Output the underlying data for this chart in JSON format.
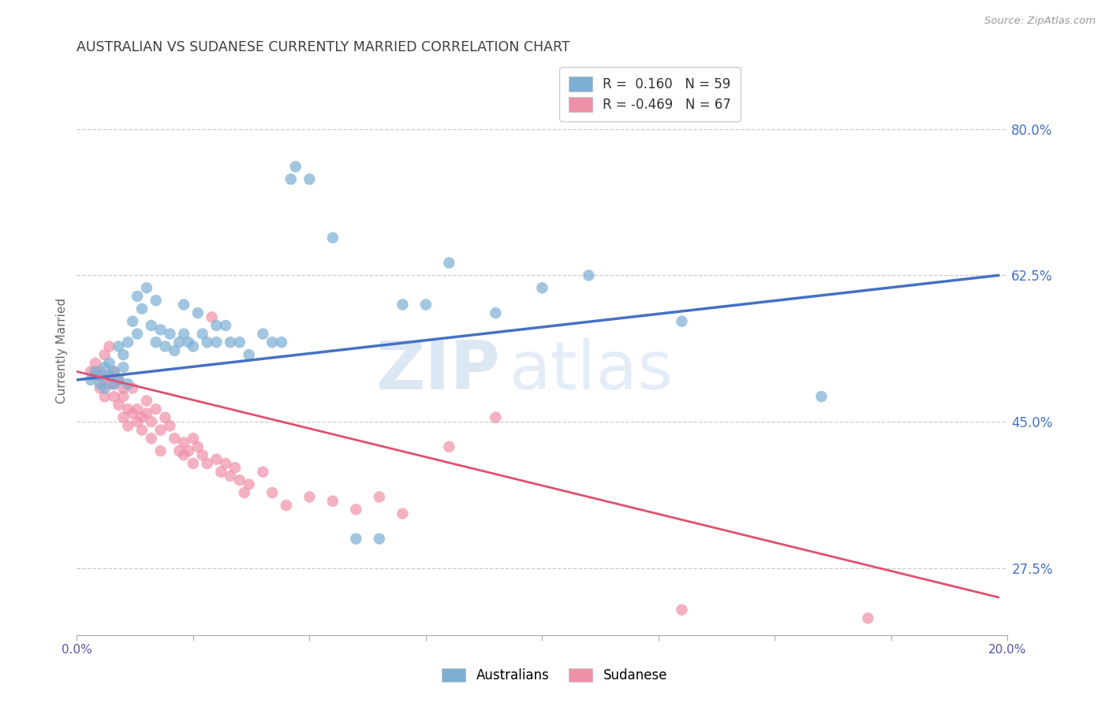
{
  "title": "AUSTRALIAN VS SUDANESE CURRENTLY MARRIED CORRELATION CHART",
  "source": "Source: ZipAtlas.com",
  "ylabel": "Currently Married",
  "ytick_labels": [
    "80.0%",
    "62.5%",
    "45.0%",
    "27.5%"
  ],
  "ytick_values": [
    0.8,
    0.625,
    0.45,
    0.275
  ],
  "xlim": [
    0.0,
    0.2
  ],
  "ylim": [
    0.195,
    0.875
  ],
  "legend_entries": [
    {
      "label": "R =  0.160   N = 59",
      "color": "#a8c4e8"
    },
    {
      "label": "R = -0.469   N = 67",
      "color": "#f4a0b0"
    }
  ],
  "line_blue_color": "#4472c4",
  "line_pink_color": "#e05070",
  "dot_blue_color": "#7bafd4",
  "dot_pink_color": "#f090a8",
  "background_color": "#ffffff",
  "grid_color": "#cccccc",
  "axis_label_color": "#4472c4",
  "title_color": "#404040",
  "australians_scatter": [
    [
      0.003,
      0.5
    ],
    [
      0.004,
      0.51
    ],
    [
      0.005,
      0.495
    ],
    [
      0.005,
      0.505
    ],
    [
      0.006,
      0.515
    ],
    [
      0.006,
      0.49
    ],
    [
      0.007,
      0.505
    ],
    [
      0.007,
      0.52
    ],
    [
      0.008,
      0.495
    ],
    [
      0.008,
      0.51
    ],
    [
      0.009,
      0.5
    ],
    [
      0.009,
      0.54
    ],
    [
      0.01,
      0.53
    ],
    [
      0.01,
      0.515
    ],
    [
      0.011,
      0.495
    ],
    [
      0.011,
      0.545
    ],
    [
      0.012,
      0.57
    ],
    [
      0.013,
      0.6
    ],
    [
      0.013,
      0.555
    ],
    [
      0.014,
      0.585
    ],
    [
      0.015,
      0.61
    ],
    [
      0.016,
      0.565
    ],
    [
      0.017,
      0.545
    ],
    [
      0.017,
      0.595
    ],
    [
      0.018,
      0.56
    ],
    [
      0.019,
      0.54
    ],
    [
      0.02,
      0.555
    ],
    [
      0.021,
      0.535
    ],
    [
      0.022,
      0.545
    ],
    [
      0.023,
      0.59
    ],
    [
      0.023,
      0.555
    ],
    [
      0.024,
      0.545
    ],
    [
      0.025,
      0.54
    ],
    [
      0.026,
      0.58
    ],
    [
      0.027,
      0.555
    ],
    [
      0.028,
      0.545
    ],
    [
      0.03,
      0.565
    ],
    [
      0.03,
      0.545
    ],
    [
      0.032,
      0.565
    ],
    [
      0.033,
      0.545
    ],
    [
      0.035,
      0.545
    ],
    [
      0.037,
      0.53
    ],
    [
      0.04,
      0.555
    ],
    [
      0.042,
      0.545
    ],
    [
      0.044,
      0.545
    ],
    [
      0.046,
      0.74
    ],
    [
      0.047,
      0.755
    ],
    [
      0.05,
      0.74
    ],
    [
      0.055,
      0.67
    ],
    [
      0.06,
      0.31
    ],
    [
      0.065,
      0.31
    ],
    [
      0.07,
      0.59
    ],
    [
      0.075,
      0.59
    ],
    [
      0.08,
      0.64
    ],
    [
      0.09,
      0.58
    ],
    [
      0.1,
      0.61
    ],
    [
      0.11,
      0.625
    ],
    [
      0.13,
      0.57
    ],
    [
      0.16,
      0.48
    ]
  ],
  "sudanese_scatter": [
    [
      0.003,
      0.51
    ],
    [
      0.004,
      0.505
    ],
    [
      0.004,
      0.52
    ],
    [
      0.005,
      0.49
    ],
    [
      0.005,
      0.51
    ],
    [
      0.006,
      0.5
    ],
    [
      0.006,
      0.48
    ],
    [
      0.006,
      0.53
    ],
    [
      0.007,
      0.495
    ],
    [
      0.007,
      0.505
    ],
    [
      0.007,
      0.54
    ],
    [
      0.008,
      0.48
    ],
    [
      0.008,
      0.51
    ],
    [
      0.008,
      0.495
    ],
    [
      0.009,
      0.47
    ],
    [
      0.009,
      0.5
    ],
    [
      0.01,
      0.49
    ],
    [
      0.01,
      0.455
    ],
    [
      0.01,
      0.48
    ],
    [
      0.011,
      0.465
    ],
    [
      0.011,
      0.445
    ],
    [
      0.012,
      0.46
    ],
    [
      0.012,
      0.49
    ],
    [
      0.013,
      0.45
    ],
    [
      0.013,
      0.465
    ],
    [
      0.014,
      0.44
    ],
    [
      0.014,
      0.455
    ],
    [
      0.015,
      0.475
    ],
    [
      0.015,
      0.46
    ],
    [
      0.016,
      0.45
    ],
    [
      0.016,
      0.43
    ],
    [
      0.017,
      0.465
    ],
    [
      0.018,
      0.44
    ],
    [
      0.018,
      0.415
    ],
    [
      0.019,
      0.455
    ],
    [
      0.02,
      0.445
    ],
    [
      0.021,
      0.43
    ],
    [
      0.022,
      0.415
    ],
    [
      0.023,
      0.41
    ],
    [
      0.023,
      0.425
    ],
    [
      0.024,
      0.415
    ],
    [
      0.025,
      0.4
    ],
    [
      0.025,
      0.43
    ],
    [
      0.026,
      0.42
    ],
    [
      0.027,
      0.41
    ],
    [
      0.028,
      0.4
    ],
    [
      0.029,
      0.575
    ],
    [
      0.03,
      0.405
    ],
    [
      0.031,
      0.39
    ],
    [
      0.032,
      0.4
    ],
    [
      0.033,
      0.385
    ],
    [
      0.034,
      0.395
    ],
    [
      0.035,
      0.38
    ],
    [
      0.036,
      0.365
    ],
    [
      0.037,
      0.375
    ],
    [
      0.04,
      0.39
    ],
    [
      0.042,
      0.365
    ],
    [
      0.045,
      0.35
    ],
    [
      0.05,
      0.36
    ],
    [
      0.055,
      0.355
    ],
    [
      0.06,
      0.345
    ],
    [
      0.065,
      0.36
    ],
    [
      0.07,
      0.34
    ],
    [
      0.08,
      0.42
    ],
    [
      0.09,
      0.455
    ],
    [
      0.13,
      0.225
    ],
    [
      0.17,
      0.215
    ]
  ],
  "blue_line_x": [
    0.0,
    0.198
  ],
  "blue_line_y": [
    0.5,
    0.625
  ],
  "pink_line_x": [
    0.0,
    0.198
  ],
  "pink_line_y": [
    0.51,
    0.24
  ]
}
